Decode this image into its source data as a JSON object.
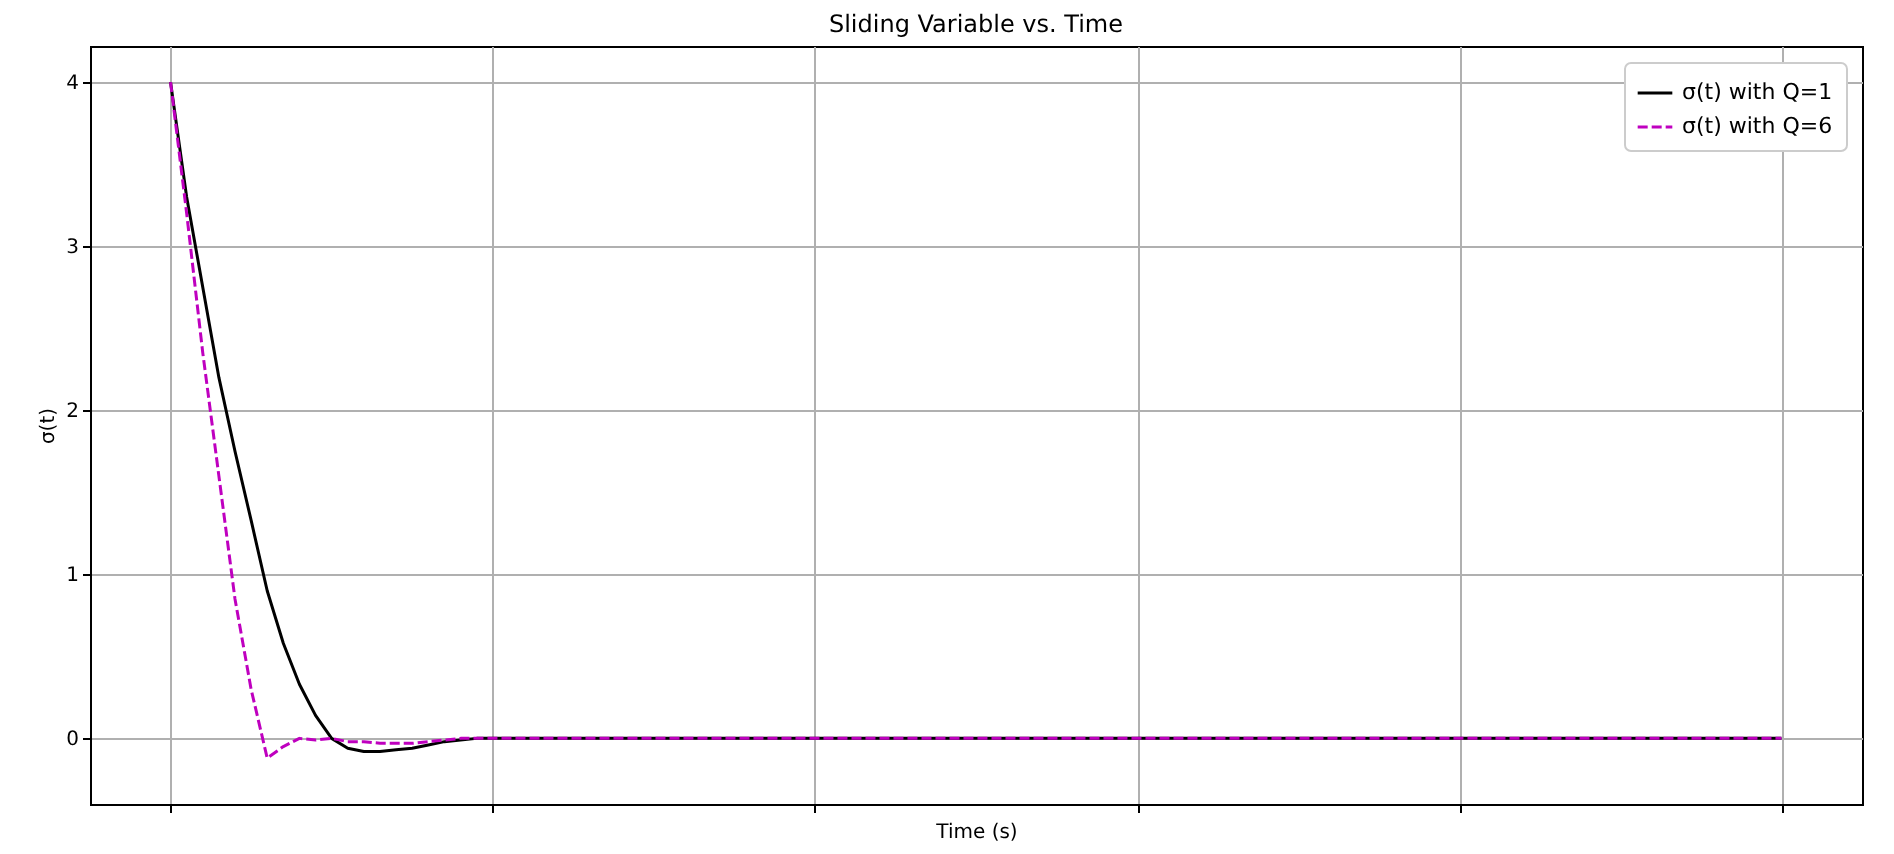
{
  "chart_data": {
    "type": "line",
    "title": "Sliding Variable vs. Time",
    "xlabel": "Time (s)",
    "ylabel": "σ(t)",
    "categories": [
      null,
      null,
      null,
      null,
      null,
      null,
      null,
      null,
      null,
      null,
      null,
      null,
      null,
      null,
      null,
      null,
      null,
      null,
      null,
      null,
      null,
      null,
      null,
      null,
      null,
      null,
      null,
      null,
      null,
      null,
      null,
      null,
      null,
      null,
      null,
      null,
      null,
      null,
      null,
      null,
      null,
      null,
      null,
      null,
      null,
      null,
      null,
      null,
      null,
      null,
      null,
      null,
      null,
      null,
      null,
      null,
      null,
      null,
      null,
      null,
      null,
      null,
      null,
      null,
      null,
      null,
      null,
      null,
      null,
      null,
      null,
      null,
      null,
      null,
      null,
      null,
      null,
      null,
      null,
      null,
      null,
      null,
      null,
      null,
      null,
      null,
      null,
      null,
      null,
      null,
      null,
      null,
      null,
      null,
      null,
      null,
      null,
      null,
      null,
      null,
      null
    ],
    "series": [
      {
        "name": "σ(t) with Q=1",
        "color": "#000000",
        "line_style": "solid",
        "values": [
          4,
          3.3,
          2.75,
          2.2,
          1.75,
          1.33,
          0.9,
          0.58,
          0.33,
          0.14,
          0,
          -0.06,
          -0.08,
          -0.08,
          -0.07,
          -0.06,
          -0.04,
          -0.02,
          -0.01,
          0,
          0,
          0,
          0,
          0,
          0,
          0,
          0,
          0,
          0,
          0,
          0,
          0,
          0,
          0,
          0,
          0,
          0,
          0,
          0,
          0,
          0,
          0,
          0,
          0,
          0,
          0,
          0,
          0,
          0,
          0,
          0,
          0,
          0,
          0,
          0,
          0,
          0,
          0,
          0,
          0,
          0,
          0,
          0,
          0,
          0,
          0,
          0,
          0,
          0,
          0,
          0,
          0,
          0,
          0,
          0,
          0,
          0,
          0,
          0,
          0,
          0,
          0,
          0,
          0,
          0,
          0,
          0,
          0,
          0,
          0,
          0,
          0,
          0,
          0,
          0,
          0,
          0,
          0,
          0,
          0,
          0
        ]
      },
      {
        "name": "σ(t) with Q=6",
        "color": "#bf00bf",
        "line_style": "dashed",
        "values": [
          4,
          3.2,
          2.35,
          1.6,
          0.85,
          0.3,
          -0.12,
          -0.05,
          0,
          -0.01,
          0,
          -0.02,
          -0.02,
          -0.03,
          -0.03,
          -0.03,
          -0.02,
          -0.01,
          0,
          0,
          0,
          0,
          0,
          0,
          0,
          0,
          0,
          0,
          0,
          0,
          0,
          0,
          0,
          0,
          0,
          0,
          0,
          0,
          0,
          0,
          0,
          0,
          0,
          0,
          0,
          0,
          0,
          0,
          0,
          0,
          0,
          0,
          0,
          0,
          0,
          0,
          0,
          0,
          0,
          0,
          0,
          0,
          0,
          0,
          0,
          0,
          0,
          0,
          0,
          0,
          0,
          0,
          0,
          0,
          0,
          0,
          0,
          0,
          0,
          0,
          0,
          0,
          0,
          0,
          0,
          0,
          0,
          0,
          0,
          0,
          0,
          0,
          0,
          0,
          0,
          0,
          0,
          0,
          0,
          0,
          0
        ]
      }
    ],
    "ylim": [
      -0.4,
      4.22
    ],
    "yticks": [
      0,
      1,
      2,
      3,
      4
    ],
    "grid": true,
    "legend": "top right"
  }
}
